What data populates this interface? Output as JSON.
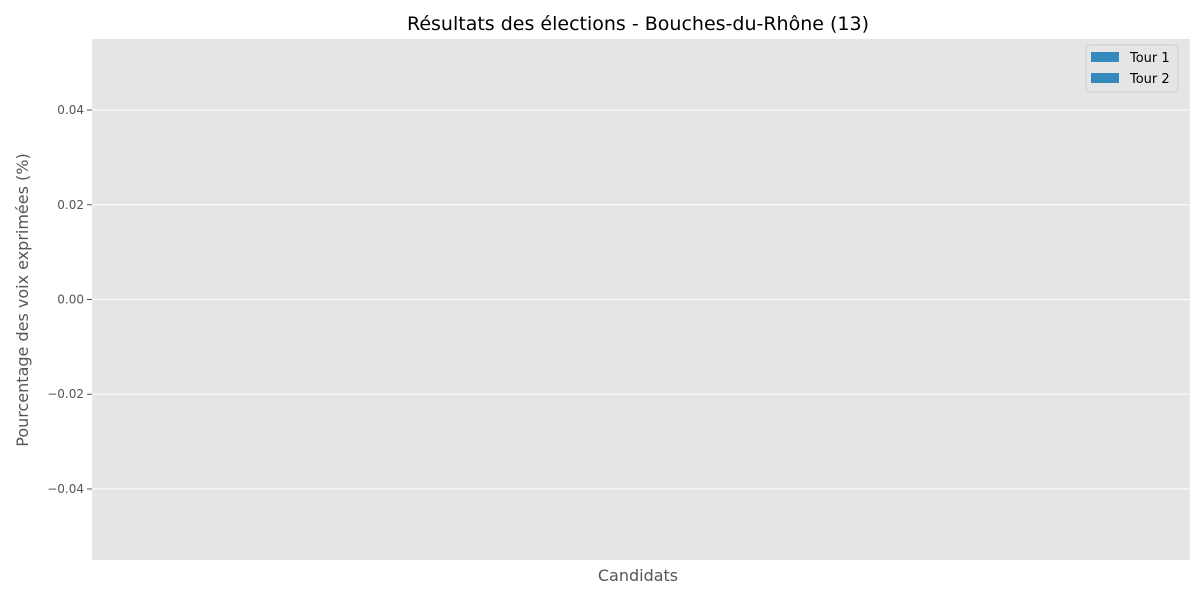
{
  "chart_data": {
    "type": "bar",
    "title": "Résultats des élections - Bouches-du-Rhône (13)",
    "xlabel": "Candidats",
    "ylabel": "Pourcentage des voix exprimées (%)",
    "categories": [],
    "series": [
      {
        "name": "Tour 1",
        "values": []
      },
      {
        "name": "Tour 2",
        "values": []
      }
    ],
    "ylim": [
      -0.055,
      0.055
    ],
    "yticks": [
      -0.04,
      -0.02,
      0.0,
      0.02,
      0.04
    ],
    "ytick_labels": [
      "−0.04",
      "−0.02",
      "0.00",
      "0.02",
      "0.04"
    ],
    "grid": true,
    "legend_position": "top-right",
    "colors": {
      "plot_background": "#e5e5e5",
      "grid": "#ffffff",
      "tour1": "#348abd",
      "tour2": "#348abd"
    }
  }
}
